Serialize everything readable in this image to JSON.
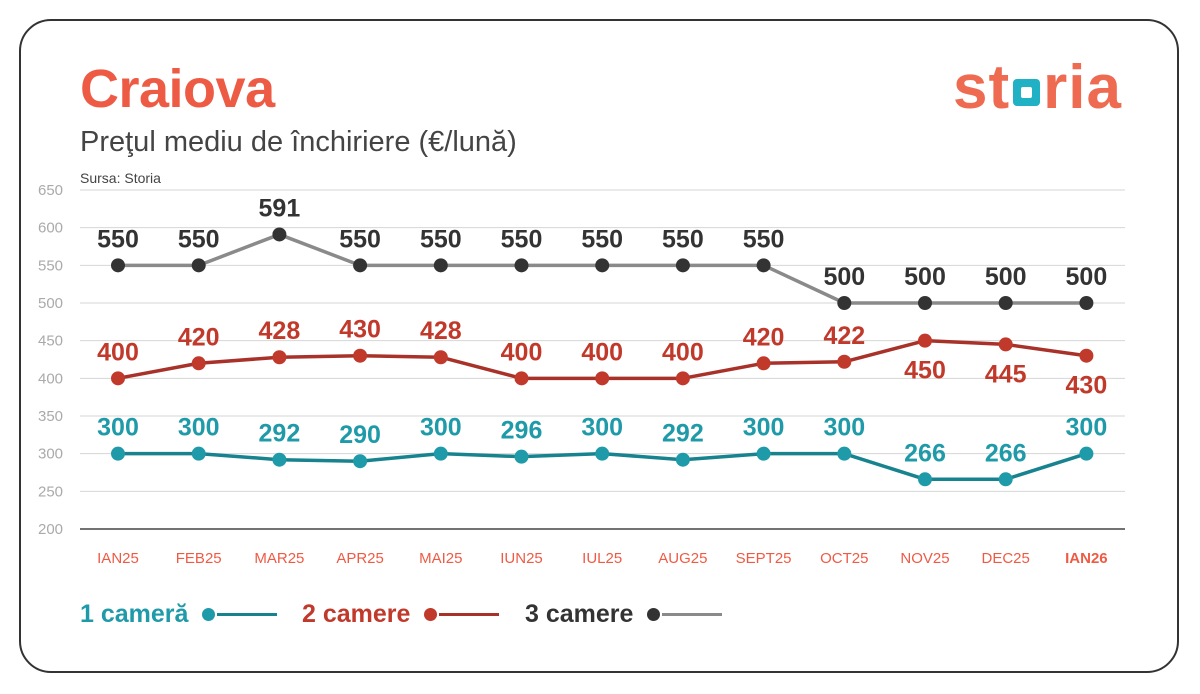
{
  "header": {
    "title": "Craiova",
    "subtitle": "Preţul mediu de închiriere (€/lună)",
    "source": "Sursa: Storia",
    "logo_text_left": "st",
    "logo_text_right": "ria"
  },
  "colors": {
    "accent": "#ee5b45",
    "series_1": "#1f9aa8",
    "series_2": "#c0392b",
    "series_3": "#333333",
    "series_3_line": "#8a8a8a",
    "series_2_line": "#a8322a",
    "series_1_line": "#17838f",
    "grid": "#d6d6d6",
    "axis": "#444444",
    "tick": "#aaaaaa"
  },
  "chart_data": {
    "type": "line",
    "categories": [
      "IAN25",
      "FEB25",
      "MAR25",
      "APR25",
      "MAI25",
      "IUN25",
      "IUL25",
      "AUG25",
      "SEPT25",
      "OCT25",
      "NOV25",
      "DEC25",
      "IAN26"
    ],
    "highlight_category": "IAN26",
    "ylim": [
      200,
      650
    ],
    "yticks": [
      200,
      250,
      300,
      350,
      400,
      450,
      500,
      550,
      600,
      650
    ],
    "grid": true,
    "legend_position": "bottom",
    "series": [
      {
        "name": "1 cameră",
        "values": [
          300,
          300,
          292,
          290,
          300,
          296,
          300,
          292,
          300,
          300,
          266,
          266,
          300
        ]
      },
      {
        "name": "2 camere",
        "values": [
          400,
          420,
          428,
          430,
          428,
          400,
          400,
          400,
          420,
          422,
          450,
          445,
          430
        ]
      },
      {
        "name": "3 camere",
        "values": [
          550,
          550,
          591,
          550,
          550,
          550,
          550,
          550,
          550,
          500,
          500,
          500,
          500
        ]
      }
    ]
  }
}
